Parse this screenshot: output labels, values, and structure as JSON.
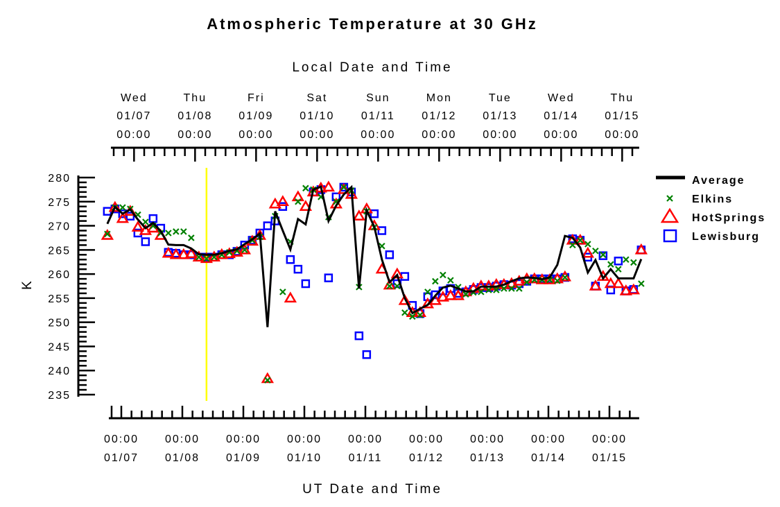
{
  "chart_data": {
    "type": "scatter",
    "title": "Atmospheric Temperature at 30 GHz",
    "top_xlabel": "Local Date and Time",
    "xlabel": "UT Date and Time",
    "ylabel": "K",
    "ylim": [
      235,
      280
    ],
    "y_ticks": [
      280,
      275,
      270,
      265,
      260,
      255,
      250,
      245,
      240,
      235
    ],
    "x_units": "hours since 01/07 00:00 UT",
    "x_start_hours": -5.5,
    "x_step_hours": 3,
    "local_offset_hours": 5,
    "top_ticks": [
      {
        "day": "Wed",
        "date": "01/07",
        "time": "00:00"
      },
      {
        "day": "Thu",
        "date": "01/08",
        "time": "00:00"
      },
      {
        "day": "Fri",
        "date": "01/09",
        "time": "00:00"
      },
      {
        "day": "Sat",
        "date": "01/10",
        "time": "00:00"
      },
      {
        "day": "Sun",
        "date": "01/11",
        "time": "00:00"
      },
      {
        "day": "Mon",
        "date": "01/12",
        "time": "00:00"
      },
      {
        "day": "Tue",
        "date": "01/13",
        "time": "00:00"
      },
      {
        "day": "Wed",
        "date": "01/14",
        "time": "00:00"
      },
      {
        "day": "Thu",
        "date": "01/15",
        "time": "00:00"
      }
    ],
    "bottom_ticks": [
      {
        "time": "00:00",
        "date": "01/07"
      },
      {
        "time": "00:00",
        "date": "01/08"
      },
      {
        "time": "00:00",
        "date": "01/09"
      },
      {
        "time": "00:00",
        "date": "01/10"
      },
      {
        "time": "00:00",
        "date": "01/11"
      },
      {
        "time": "00:00",
        "date": "01/12"
      },
      {
        "time": "00:00",
        "date": "01/13"
      },
      {
        "time": "00:00",
        "date": "01/14"
      },
      {
        "time": "00:00",
        "date": "01/15"
      }
    ],
    "marker_line_hours": 33.5,
    "legend_position": "right",
    "series": [
      {
        "name": "Average",
        "kind": "line",
        "color": "#000000",
        "values": [
          270.4,
          273.9,
          272.5,
          273.4,
          271.3,
          269.5,
          270.6,
          268.9,
          266.1,
          266.0,
          266.0,
          265.3,
          264.1,
          264.0,
          264.0,
          264.3,
          264.8,
          265.1,
          266.2,
          267.2,
          268.4,
          249.0,
          273.0,
          269.0,
          265.1,
          271.4,
          270.3,
          277.5,
          278.1,
          271.0,
          274.2,
          276.5,
          278.0,
          257.0,
          273.2,
          269.8,
          263.0,
          258.3,
          259.8,
          255.0,
          251.9,
          252.8,
          253.6,
          255.5,
          257.2,
          257.6,
          257.0,
          256.4,
          256.4,
          257.4,
          257.4,
          257.4,
          257.8,
          258.5,
          259.1,
          259.3,
          259.2,
          258.9,
          259.3,
          261.9,
          267.9,
          267.5,
          265.5,
          260.3,
          262.9,
          259.1,
          261.0,
          259.1,
          259.1,
          259.1,
          263.1
        ]
      },
      {
        "name": "Elkins",
        "kind": "x",
        "color": "#008000",
        "values": [
          268.3,
          273.8,
          273.8,
          273.5,
          272.3,
          270.8,
          270.0,
          268.5,
          268.5,
          268.8,
          268.8,
          267.5,
          263.5,
          263.2,
          263.5,
          264.0,
          264.5,
          264.8,
          265.0,
          267.0,
          267.7,
          238.0,
          272.0,
          256.3,
          266.7,
          275.0,
          277.8,
          277.5,
          276.0,
          271.8,
          275.0,
          278.0,
          277.3,
          257.3,
          273.0,
          269.7,
          265.8,
          257.5,
          257.5,
          252.0,
          251.2,
          251.5,
          256.3,
          258.5,
          259.8,
          258.7,
          257.3,
          255.8,
          256.2,
          256.3,
          256.7,
          256.7,
          257.0,
          257.0,
          257.0,
          258.3,
          258.8,
          258.8,
          258.8,
          258.6,
          259.3,
          266.0,
          267.0,
          266.2,
          264.8,
          264.0,
          262.0,
          261.0,
          263.0,
          262.4,
          258.0
        ]
      },
      {
        "name": "HotSprings",
        "kind": "triangle",
        "color": "#ff0000",
        "values": [
          268.0,
          273.8,
          271.5,
          273.0,
          269.7,
          269.0,
          269.5,
          268.0,
          264.3,
          264.0,
          264.0,
          264.2,
          263.5,
          263.2,
          263.5,
          264.0,
          264.2,
          264.5,
          265.0,
          266.8,
          268.0,
          238.3,
          274.5,
          275.0,
          255.0,
          276.0,
          274.0,
          277.0,
          277.8,
          278.0,
          274.5,
          277.5,
          276.5,
          272.0,
          273.5,
          270.0,
          261.0,
          257.7,
          260.0,
          254.5,
          252.0,
          252.0,
          253.8,
          254.5,
          255.2,
          255.5,
          255.5,
          256.3,
          257.0,
          257.5,
          257.5,
          257.8,
          257.8,
          258.0,
          258.5,
          259.0,
          259.0,
          258.8,
          258.8,
          259.0,
          259.4,
          267.0,
          267.0,
          264.3,
          257.5,
          259.5,
          258.0,
          258.0,
          256.5,
          256.7,
          265.0
        ]
      },
      {
        "name": "Lewisburg",
        "kind": "square",
        "color": "#0000ff",
        "values": [
          273.0,
          273.5,
          272.5,
          272.0,
          268.5,
          266.7,
          271.5,
          269.5,
          264.5,
          264.3,
          264.0,
          264.0,
          263.5,
          263.5,
          263.5,
          264.0,
          264.0,
          264.7,
          266.0,
          267.0,
          268.5,
          270.0,
          271.0,
          274.0,
          263.0,
          261.0,
          258.0,
          277.0,
          277.5,
          259.2,
          276.0,
          278.0,
          277.0,
          247.2,
          243.3,
          272.5,
          269.0,
          264.0,
          258.0,
          259.5,
          253.5,
          251.8,
          255.3,
          255.7,
          256.5,
          257.0,
          256.0,
          256.3,
          256.8,
          257.2,
          257.2,
          257.5,
          257.8,
          257.7,
          258.0,
          258.5,
          259.0,
          259.0,
          259.0,
          259.0,
          259.3,
          267.3,
          267.0,
          263.5,
          257.5,
          263.8,
          256.7,
          262.7,
          256.5,
          256.8,
          265.0
        ]
      }
    ]
  }
}
